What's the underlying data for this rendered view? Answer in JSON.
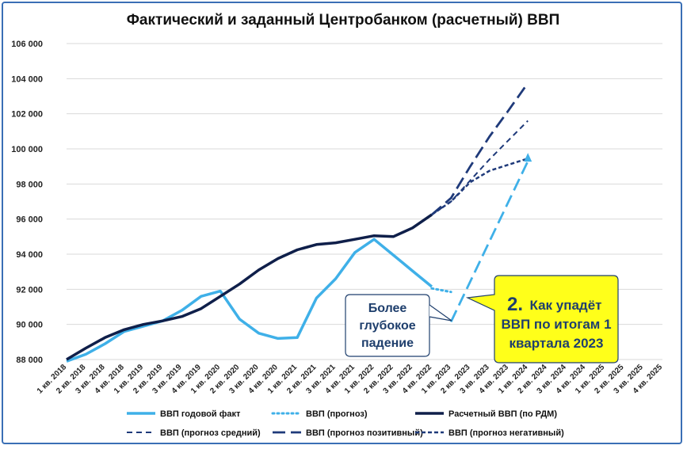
{
  "chart_data": {
    "type": "line",
    "title": "Фактический и заданный Центробанком (расчетный) ВВП",
    "categories": [
      "1 кв. 2018",
      "2 кв. 2018",
      "3 кв. 2018",
      "4 кв. 2018",
      "1 кв. 2019",
      "2 кв. 2019",
      "3 кв. 2019",
      "4 кв. 2019",
      "1 кв. 2020",
      "2 кв. 2020",
      "3 кв. 2020",
      "4 кв. 2020",
      "1 кв. 2021",
      "2 кв. 2021",
      "3 кв. 2021",
      "4 кв. 2021",
      "1 кв. 2022",
      "2 кв. 2022",
      "3 кв. 2022",
      "4 кв. 2022",
      "1 кв. 2023",
      "2 кв. 2023",
      "3 кв. 2023",
      "4 кв. 2023",
      "1 кв. 2024",
      "2 кв. 2024",
      "3 кв. 2024",
      "4 кв. 2024",
      "1 кв. 2025",
      "2 кв. 2025",
      "3 кв. 2025",
      "4 кв. 2025"
    ],
    "ylim": [
      88000,
      106000
    ],
    "yticks": [
      "88 000",
      "90 000",
      "92 000",
      "94 000",
      "96 000",
      "98 000",
      "100 000",
      "102 000",
      "104 000",
      "106 000"
    ],
    "grid": true,
    "legend_position": "bottom",
    "series": [
      {
        "name": "ВВП годовой факт",
        "color": "#3fb0e8",
        "style": "solid-thick",
        "values": [
          87900,
          88300,
          88900,
          89600,
          89900,
          90200,
          90800,
          91600,
          91900,
          90300,
          89500,
          89200,
          89250,
          91500,
          92600,
          94100,
          94850,
          93950,
          93050,
          92150,
          null,
          null,
          null,
          null,
          null,
          null,
          null,
          null,
          null,
          null,
          null,
          null
        ]
      },
      {
        "name": "ВВП (прогноз)",
        "color": "#3fb0e8",
        "style": "dotted",
        "values": [
          null,
          null,
          null,
          null,
          null,
          null,
          null,
          null,
          null,
          null,
          null,
          null,
          null,
          null,
          null,
          null,
          null,
          null,
          null,
          92050,
          91850,
          null,
          null,
          null,
          99500,
          null,
          null,
          null,
          null,
          null,
          null,
          null
        ]
      },
      {
        "name": "Расчетный ВВП (по РДМ)",
        "color": "#0f1f4a",
        "style": "solid-thick",
        "values": [
          88000,
          88650,
          89250,
          89700,
          90000,
          90200,
          90450,
          90900,
          91600,
          92300,
          93100,
          93750,
          94250,
          94550,
          94650,
          94850,
          95050,
          95000,
          95500,
          96250,
          null,
          null,
          null,
          null,
          null,
          null,
          null,
          null,
          null,
          null,
          null,
          null
        ]
      },
      {
        "name": "ВВП (прогноз средний)",
        "color": "#1f3a7a",
        "style": "dash-short",
        "values": [
          null,
          null,
          null,
          null,
          null,
          null,
          null,
          null,
          null,
          null,
          null,
          null,
          null,
          null,
          null,
          null,
          null,
          null,
          null,
          96250,
          97000,
          98200,
          99400,
          100500,
          101600,
          null,
          null,
          null,
          null,
          null,
          null,
          null
        ]
      },
      {
        "name": "ВВП (прогноз позитивный)",
        "color": "#1f3a7a",
        "style": "dash-long",
        "values": [
          null,
          null,
          null,
          null,
          null,
          null,
          null,
          null,
          null,
          null,
          null,
          null,
          null,
          null,
          null,
          null,
          null,
          null,
          null,
          96250,
          97200,
          99000,
          100700,
          102200,
          103750,
          null,
          null,
          null,
          null,
          null,
          null,
          null
        ]
      },
      {
        "name": "ВВП (прогноз негативный)",
        "color": "#1f3a7a",
        "style": "dash-medium",
        "values": [
          null,
          null,
          null,
          null,
          null,
          null,
          null,
          null,
          null,
          null,
          null,
          null,
          null,
          null,
          null,
          null,
          null,
          null,
          null,
          96250,
          97000,
          98100,
          98750,
          99100,
          99450,
          null,
          null,
          null,
          null,
          null,
          null,
          null
        ]
      }
    ],
    "extra_line": {
      "color": "#3fb0e8",
      "style": "dash-long",
      "from": [
        20,
        90150
      ],
      "to": [
        24,
        99300
      ]
    }
  },
  "annotations": {
    "left_box_lines": [
      "Более",
      "глубокое",
      "падение"
    ],
    "right_box_number": "2.",
    "right_box_lines": [
      "Как упадёт",
      "ВВП по итогам 1",
      "квартала 2023"
    ],
    "left_box_color": "#ffffff",
    "right_box_color": "#ffff1a"
  }
}
